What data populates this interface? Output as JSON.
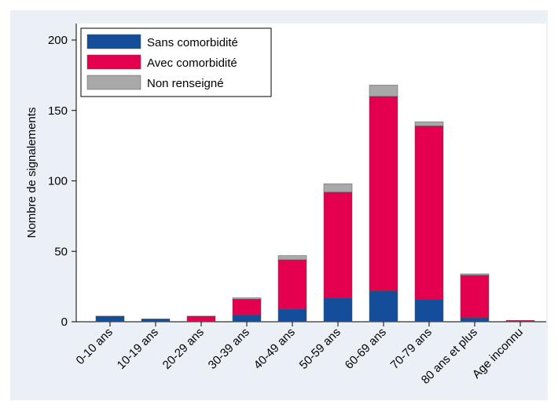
{
  "chart_data": {
    "type": "stacked-bar",
    "y_label": "Nombre de signalements",
    "categories": [
      "0-10 ans",
      "10-19 ans",
      "20-29 ans",
      "30-39 ans",
      "40-49 ans",
      "50-59 ans",
      "60-69 ans",
      "70-79 ans",
      "80 ans et plus",
      "Age inconnu"
    ],
    "series": [
      {
        "name": "Sans comorbidité",
        "color": "#144e9a",
        "values": [
          4,
          2,
          0,
          5,
          9,
          17,
          22,
          16,
          3,
          0
        ]
      },
      {
        "name": "Avec comorbidité",
        "color": "#e4004f",
        "values": [
          0,
          0,
          4,
          11,
          35,
          75,
          138,
          123,
          30,
          1
        ]
      },
      {
        "name": "Non renseigné",
        "color": "#a9a9a9",
        "values": [
          0,
          0,
          0,
          1,
          3,
          6,
          8,
          3,
          1,
          0
        ]
      }
    ],
    "ylim": [
      0,
      200
    ],
    "yticks": [
      0,
      50,
      100,
      150,
      200
    ],
    "legend": "top-left"
  }
}
